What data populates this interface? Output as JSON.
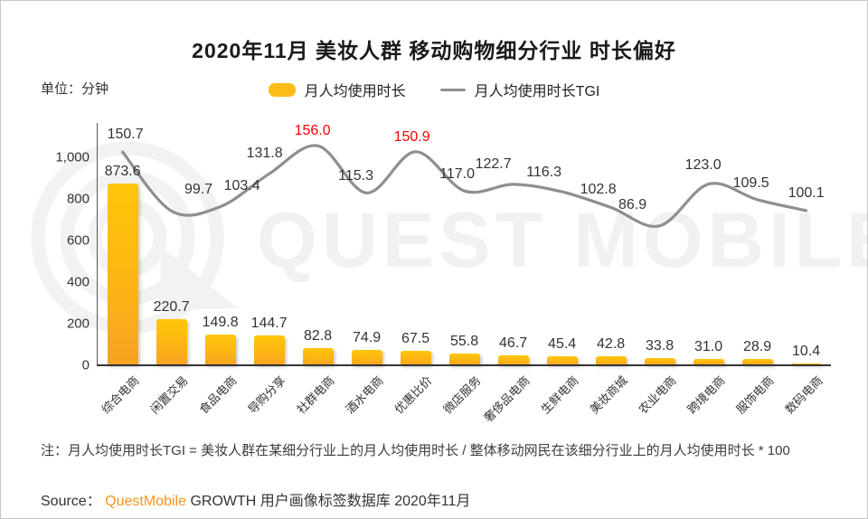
{
  "title": "2020年11月 美妆人群 移动购物细分行业 时长偏好",
  "unit_label": "单位：分钟",
  "legend": {
    "bar_label": "月人均使用时长",
    "line_label": "月人均使用时长TGI"
  },
  "watermark": "QUEST MOBILE",
  "colors": {
    "bar_top": "#ffc608",
    "bar_bottom": "#f6a322",
    "line": "#8f8f8f",
    "highlight_red": "#fe0000",
    "brand_orange": "#f7941e",
    "unit_orange": "#ed7d15",
    "watermark_gray": "#f2f2f2"
  },
  "y_axis": {
    "ticks": [
      "0",
      "200",
      "400",
      "600",
      "800",
      "1,000"
    ],
    "tick_step": 200
  },
  "chart_data": {
    "type": "bar",
    "categories": [
      "综合电商",
      "闲置交易",
      "食品电商",
      "导购分享",
      "社群电商",
      "酒水电商",
      "优惠比价",
      "微店服务",
      "奢侈品电商",
      "生鲜电商",
      "美妆商城",
      "农业电商",
      "跨境电商",
      "服饰电商",
      "数码电商"
    ],
    "series": [
      {
        "name": "月人均使用时长",
        "type": "bar",
        "values": [
          873.6,
          220.7,
          149.8,
          144.7,
          82.8,
          74.9,
          67.5,
          55.8,
          46.7,
          45.4,
          42.8,
          33.8,
          31.0,
          28.9,
          10.4
        ]
      },
      {
        "name": "月人均使用时长TGI",
        "type": "line",
        "values": [
          150.7,
          99.7,
          103.4,
          131.8,
          156.0,
          115.3,
          150.9,
          117.0,
          122.7,
          116.3,
          102.8,
          86.9,
          123.0,
          109.5,
          100.1
        ],
        "highlight_indices": [
          4,
          6
        ]
      }
    ],
    "title": "2020年11月 美妆人群 移动购物细分行业 时长偏好",
    "xlabel": "",
    "ylabel": "分钟",
    "ylim": [
      0,
      1000
    ],
    "grid": false,
    "legend_position": "top",
    "smooth_line": true
  },
  "note": "注：月人均使用时长TGI = 美妆人群在某细分行业上的月人均使用时长 / 整体移动网民在该细分行业上的月人均使用时长 * 100",
  "source": {
    "prefix": "Source：",
    "brand": "QuestMobile",
    "suffix": " GROWTH 用户画像标签数据库 2020年11月"
  }
}
